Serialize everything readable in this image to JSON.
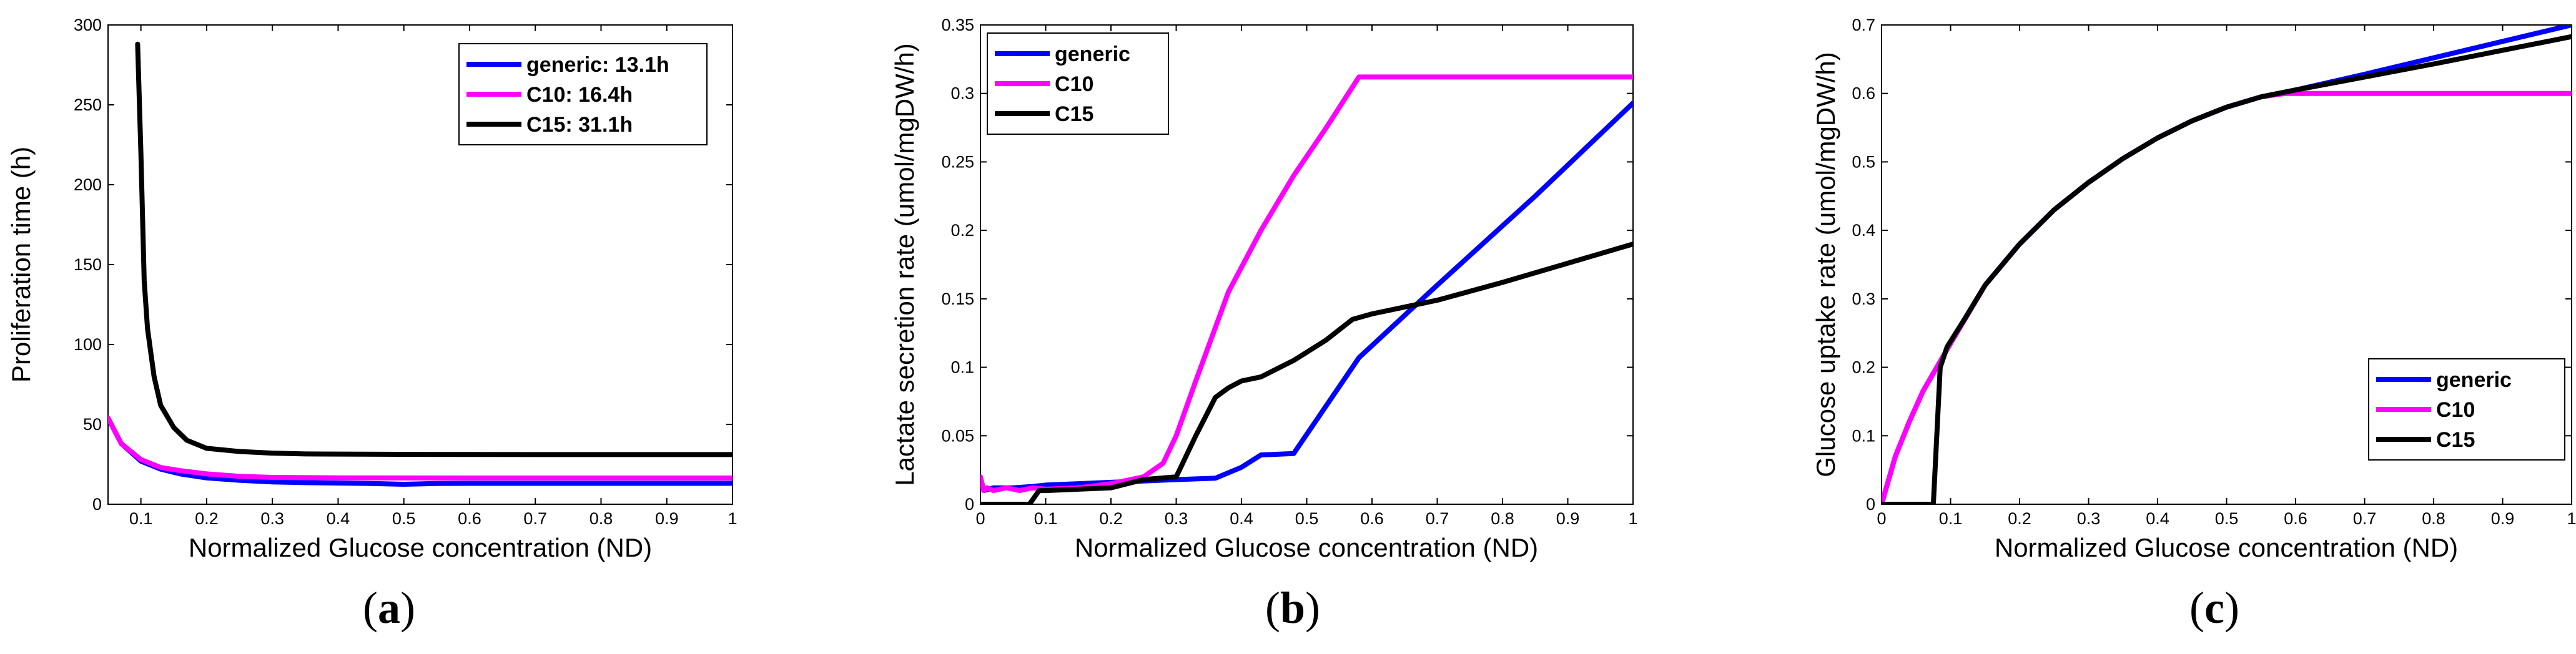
{
  "chart_data": [
    {
      "type": "line",
      "caption": "a",
      "xlabel": "Normalized Glucose concentration (ND)",
      "ylabel": "Proliferation time (h)",
      "xlim": [
        0.05,
        1
      ],
      "ylim": [
        0,
        300
      ],
      "xticks": [
        0.1,
        0.2,
        0.3,
        0.4,
        0.5,
        0.6,
        0.7,
        0.8,
        0.9,
        1
      ],
      "xtick_labels": [
        "0.1",
        "0.2",
        "0.3",
        "0.4",
        "0.5",
        "0.6",
        "0.7",
        "0.8",
        "0.9",
        "1"
      ],
      "yticks": [
        0,
        50,
        100,
        150,
        200,
        250,
        300
      ],
      "ytick_labels": [
        "0",
        "50",
        "100",
        "150",
        "200",
        "250",
        "300"
      ],
      "legend_position": "top-right",
      "series": [
        {
          "name": "generic: 13.1h",
          "color": "#0000ff",
          "x": [
            0.05,
            0.07,
            0.1,
            0.13,
            0.16,
            0.2,
            0.25,
            0.3,
            0.35,
            0.45,
            0.5,
            0.55,
            0.6,
            0.8,
            1.0
          ],
          "y": [
            54,
            38,
            27,
            22,
            19,
            16.5,
            15,
            14,
            13.5,
            13,
            12.5,
            13,
            13.1,
            13.1,
            13.1
          ]
        },
        {
          "name": "C10: 16.4h",
          "color": "#ff00ff",
          "x": [
            0.05,
            0.07,
            0.1,
            0.13,
            0.16,
            0.2,
            0.25,
            0.3,
            0.4,
            0.6,
            0.8,
            1.0
          ],
          "y": [
            54,
            38,
            28,
            23,
            21,
            19,
            17.5,
            16.8,
            16.5,
            16.4,
            16.4,
            16.4
          ]
        },
        {
          "name": "C15: 31.1h",
          "color": "#000000",
          "x": [
            0.095,
            0.1,
            0.105,
            0.11,
            0.12,
            0.13,
            0.15,
            0.17,
            0.2,
            0.25,
            0.3,
            0.35,
            0.5,
            0.7,
            1.0
          ],
          "y": [
            288,
            220,
            140,
            110,
            80,
            62,
            48,
            40,
            35,
            33,
            32,
            31.5,
            31.2,
            31.1,
            31.1
          ]
        }
      ]
    },
    {
      "type": "line",
      "caption": "b",
      "xlabel": "Normalized Glucose concentration (ND)",
      "ylabel": "Lactate secretion rate (umol/mgDW/h)",
      "xlim": [
        0,
        1
      ],
      "ylim": [
        0,
        0.35
      ],
      "xticks": [
        0,
        0.1,
        0.2,
        0.3,
        0.4,
        0.5,
        0.6,
        0.7,
        0.8,
        0.9,
        1
      ],
      "xtick_labels": [
        "0",
        "0.1",
        "0.2",
        "0.3",
        "0.4",
        "0.5",
        "0.6",
        "0.7",
        "0.8",
        "0.9",
        "1"
      ],
      "yticks": [
        0,
        0.05,
        0.1,
        0.15,
        0.2,
        0.25,
        0.3,
        0.35
      ],
      "ytick_labels": [
        "0",
        "0.05",
        "0.1",
        "0.15",
        "0.2",
        "0.25",
        "0.3",
        "0.35"
      ],
      "legend_position": "top-left",
      "series": [
        {
          "name": "generic",
          "color": "#0000ff",
          "x": [
            0,
            0.005,
            0.02,
            0.05,
            0.08,
            0.1,
            0.15,
            0.2,
            0.25,
            0.3,
            0.36,
            0.4,
            0.43,
            0.48,
            0.58,
            0.7,
            0.85,
            1.0
          ],
          "y": [
            0.018,
            0.01,
            0.012,
            0.012,
            0.013,
            0.014,
            0.015,
            0.016,
            0.017,
            0.018,
            0.019,
            0.027,
            0.036,
            0.037,
            0.107,
            0.16,
            0.225,
            0.293
          ]
        },
        {
          "name": "C10",
          "color": "#ff00ff",
          "x": [
            0,
            0.005,
            0.01,
            0.02,
            0.04,
            0.06,
            0.08,
            0.1,
            0.15,
            0.2,
            0.25,
            0.28,
            0.3,
            0.33,
            0.38,
            0.43,
            0.48,
            0.53,
            0.58,
            0.7,
            0.85,
            1.0
          ],
          "y": [
            0.02,
            0.01,
            0.012,
            0.01,
            0.012,
            0.01,
            0.012,
            0.011,
            0.012,
            0.015,
            0.02,
            0.03,
            0.05,
            0.09,
            0.155,
            0.2,
            0.24,
            0.275,
            0.312,
            0.312,
            0.312,
            0.312
          ]
        },
        {
          "name": "C15",
          "color": "#000000",
          "x": [
            0,
            0.075,
            0.09,
            0.1,
            0.15,
            0.2,
            0.25,
            0.3,
            0.33,
            0.36,
            0.38,
            0.4,
            0.43,
            0.48,
            0.53,
            0.57,
            0.6,
            0.7,
            0.8,
            0.9,
            1.0
          ],
          "y": [
            0,
            0,
            0.01,
            0.01,
            0.011,
            0.012,
            0.018,
            0.02,
            0.05,
            0.078,
            0.085,
            0.09,
            0.093,
            0.105,
            0.12,
            0.135,
            0.139,
            0.149,
            0.162,
            0.176,
            0.19
          ]
        }
      ]
    },
    {
      "type": "line",
      "caption": "c",
      "xlabel": "Normalized Glucose concentration (ND)",
      "ylabel": "Glucose uptake rate (umol/mgDW/h)",
      "xlim": [
        0,
        1
      ],
      "ylim": [
        0,
        0.7
      ],
      "xticks": [
        0,
        0.1,
        0.2,
        0.3,
        0.4,
        0.5,
        0.6,
        0.7,
        0.8,
        0.9,
        1
      ],
      "xtick_labels": [
        "0",
        "0.1",
        "0.2",
        "0.3",
        "0.4",
        "0.5",
        "0.6",
        "0.7",
        "0.8",
        "0.9",
        "1"
      ],
      "yticks": [
        0,
        0.1,
        0.2,
        0.3,
        0.4,
        0.5,
        0.6,
        0.7
      ],
      "ytick_labels": [
        "0",
        "0.1",
        "0.2",
        "0.3",
        "0.4",
        "0.5",
        "0.6",
        "0.7"
      ],
      "legend_position": "bottom-right",
      "series": [
        {
          "name": "generic",
          "color": "#0000ff",
          "x": [
            0,
            0.02,
            0.04,
            0.06,
            0.08,
            0.1,
            0.15,
            0.2,
            0.25,
            0.3,
            0.35,
            0.4,
            0.45,
            0.5,
            0.55,
            0.6,
            0.7,
            0.8,
            0.9,
            1.0
          ],
          "y": [
            0,
            0.07,
            0.12,
            0.165,
            0.2,
            0.235,
            0.32,
            0.38,
            0.43,
            0.47,
            0.505,
            0.535,
            0.56,
            0.58,
            0.595,
            0.605,
            0.628,
            0.652,
            0.676,
            0.7
          ]
        },
        {
          "name": "C10",
          "color": "#ff00ff",
          "x": [
            0,
            0.02,
            0.04,
            0.06,
            0.08,
            0.1,
            0.15,
            0.2,
            0.25,
            0.3,
            0.35,
            0.4,
            0.45,
            0.5,
            0.55,
            0.585,
            0.6,
            0.8,
            1.0
          ],
          "y": [
            0,
            0.07,
            0.12,
            0.165,
            0.2,
            0.235,
            0.32,
            0.38,
            0.43,
            0.47,
            0.505,
            0.535,
            0.56,
            0.58,
            0.595,
            0.6,
            0.6,
            0.6,
            0.6
          ]
        },
        {
          "name": "C15",
          "color": "#000000",
          "x": [
            0,
            0.075,
            0.085,
            0.095,
            0.12,
            0.15,
            0.2,
            0.25,
            0.3,
            0.35,
            0.4,
            0.45,
            0.5,
            0.55,
            0.6,
            0.7,
            0.8,
            0.9,
            1.0
          ],
          "y": [
            0,
            0,
            0.2,
            0.23,
            0.27,
            0.32,
            0.38,
            0.43,
            0.47,
            0.505,
            0.535,
            0.56,
            0.58,
            0.595,
            0.605,
            0.624,
            0.643,
            0.663,
            0.683
          ]
        }
      ]
    }
  ]
}
